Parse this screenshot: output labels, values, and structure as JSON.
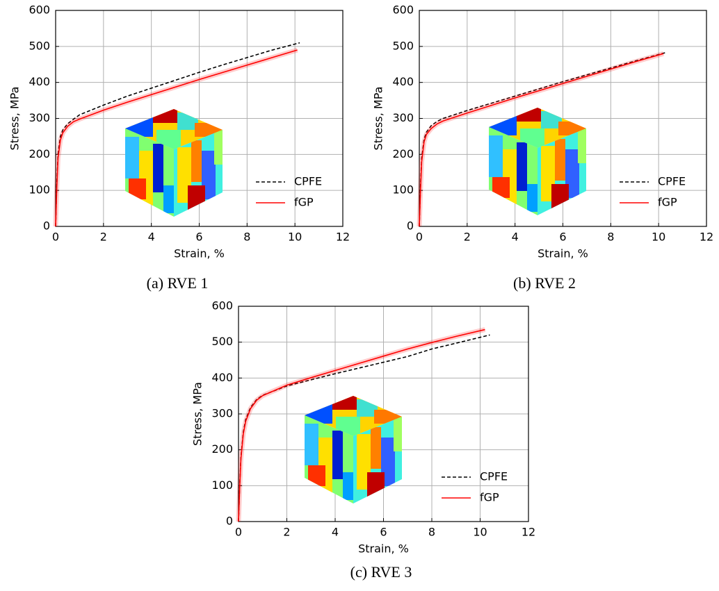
{
  "chart_data": [
    {
      "type": "line",
      "caption": "(a) RVE 1",
      "xlabel": "Strain, %",
      "ylabel": "Stress, MPa",
      "xlim": [
        0,
        12
      ],
      "ylim": [
        0,
        600
      ],
      "xticks": [
        0,
        2,
        4,
        6,
        8,
        10,
        12
      ],
      "yticks": [
        0,
        100,
        200,
        300,
        400,
        500,
        600
      ],
      "grid": true,
      "legend": "lower right",
      "series": [
        {
          "name": "CPFE",
          "color": "#000000",
          "dash": "dashed",
          "x": [
            0,
            0.05,
            0.1,
            0.2,
            0.3,
            0.5,
            0.75,
            1,
            2,
            3,
            4,
            5,
            6,
            7,
            8,
            9,
            10.2
          ],
          "values": [
            0,
            120,
            200,
            250,
            268,
            285,
            298,
            310,
            337,
            362,
            384,
            406,
            428,
            449,
            469,
            489,
            510
          ]
        },
        {
          "name": "fGP",
          "color": "#ff0000",
          "dash": "solid",
          "x": [
            0,
            0.05,
            0.1,
            0.2,
            0.3,
            0.5,
            0.75,
            1,
            2,
            3,
            4,
            5,
            6,
            7,
            8,
            9,
            10.1
          ],
          "values": [
            0,
            110,
            190,
            240,
            260,
            278,
            291,
            298,
            323,
            345,
            366,
            387,
            408,
            428,
            448,
            468,
            490
          ]
        }
      ]
    },
    {
      "type": "line",
      "caption": "(b) RVE 2",
      "xlabel": "Strain, %",
      "ylabel": "Stress, MPa",
      "xlim": [
        0,
        12
      ],
      "ylim": [
        0,
        600
      ],
      "xticks": [
        0,
        2,
        4,
        6,
        8,
        10,
        12
      ],
      "yticks": [
        0,
        100,
        200,
        300,
        400,
        500,
        600
      ],
      "grid": true,
      "legend": "lower right",
      "series": [
        {
          "name": "CPFE",
          "color": "#000000",
          "dash": "dashed",
          "x": [
            0,
            0.05,
            0.1,
            0.2,
            0.3,
            0.5,
            0.75,
            1,
            2,
            3,
            4,
            5,
            6,
            7,
            8,
            9,
            10.3
          ],
          "values": [
            0,
            110,
            190,
            242,
            262,
            280,
            292,
            300,
            322,
            342,
            362,
            382,
            402,
            421,
            440,
            459,
            483
          ]
        },
        {
          "name": "fGP",
          "color": "#ff0000",
          "dash": "solid",
          "x": [
            0,
            0.05,
            0.1,
            0.2,
            0.3,
            0.5,
            0.75,
            1,
            2,
            3,
            4,
            5,
            6,
            7,
            8,
            9,
            10.2
          ],
          "values": [
            0,
            100,
            180,
            235,
            256,
            272,
            285,
            293,
            315,
            336,
            357,
            377,
            397,
            417,
            437,
            457,
            480
          ]
        }
      ]
    },
    {
      "type": "line",
      "caption": "(c) RVE 3",
      "xlabel": "Strain, %",
      "ylabel": "Stress, MPa",
      "xlim": [
        0,
        12
      ],
      "ylim": [
        0,
        600
      ],
      "xticks": [
        0,
        2,
        4,
        6,
        8,
        10,
        12
      ],
      "yticks": [
        0,
        100,
        200,
        300,
        400,
        500,
        600
      ],
      "grid": true,
      "legend": "lower right",
      "series": [
        {
          "name": "CPFE",
          "color": "#000000",
          "dash": "dashed",
          "x": [
            0,
            0.05,
            0.1,
            0.2,
            0.3,
            0.5,
            0.75,
            1,
            2,
            3,
            4,
            5,
            6,
            7,
            8,
            9,
            10.4
          ],
          "values": [
            0,
            100,
            180,
            250,
            285,
            318,
            340,
            352,
            378,
            395,
            412,
            428,
            444,
            460,
            481,
            497,
            520
          ]
        },
        {
          "name": "fGP",
          "color": "#ff0000",
          "dash": "solid",
          "x": [
            0,
            0.05,
            0.1,
            0.2,
            0.3,
            0.5,
            0.75,
            1,
            2,
            3,
            4,
            5,
            6,
            7,
            8,
            9,
            10.2
          ],
          "values": [
            0,
            95,
            175,
            245,
            280,
            315,
            338,
            351,
            380,
            401,
            421,
            441,
            461,
            481,
            499,
            516,
            535
          ]
        }
      ]
    }
  ]
}
